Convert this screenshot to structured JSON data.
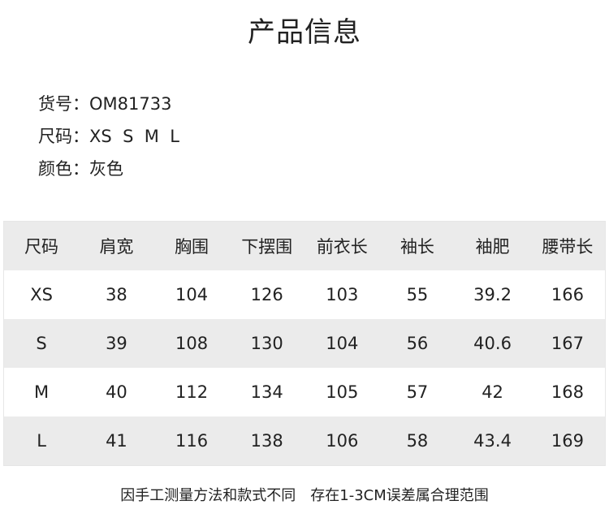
{
  "title": "产品信息",
  "info": [
    {
      "label": "货号：",
      "value": "OM81733"
    },
    {
      "label": "尺码：",
      "value": "XS  S  M  L"
    },
    {
      "label": "颜色：",
      "value": "灰色"
    }
  ],
  "table": {
    "headers": [
      "尺码",
      "肩宽",
      "胸围",
      "下摆围",
      "前衣长",
      "袖长",
      "袖肥",
      "腰带长"
    ],
    "rows": [
      [
        "XS",
        "38",
        "104",
        "126",
        "103",
        "55",
        "39.2",
        "166"
      ],
      [
        "S",
        "39",
        "108",
        "130",
        "104",
        "56",
        "40.6",
        "167"
      ],
      [
        "M",
        "40",
        "112",
        "134",
        "105",
        "57",
        "42",
        "168"
      ],
      [
        "L",
        "41",
        "116",
        "138",
        "106",
        "58",
        "43.4",
        "169"
      ]
    ]
  },
  "note": "因手工测量方法和款式不同　存在1-3CM误差属合理范围"
}
